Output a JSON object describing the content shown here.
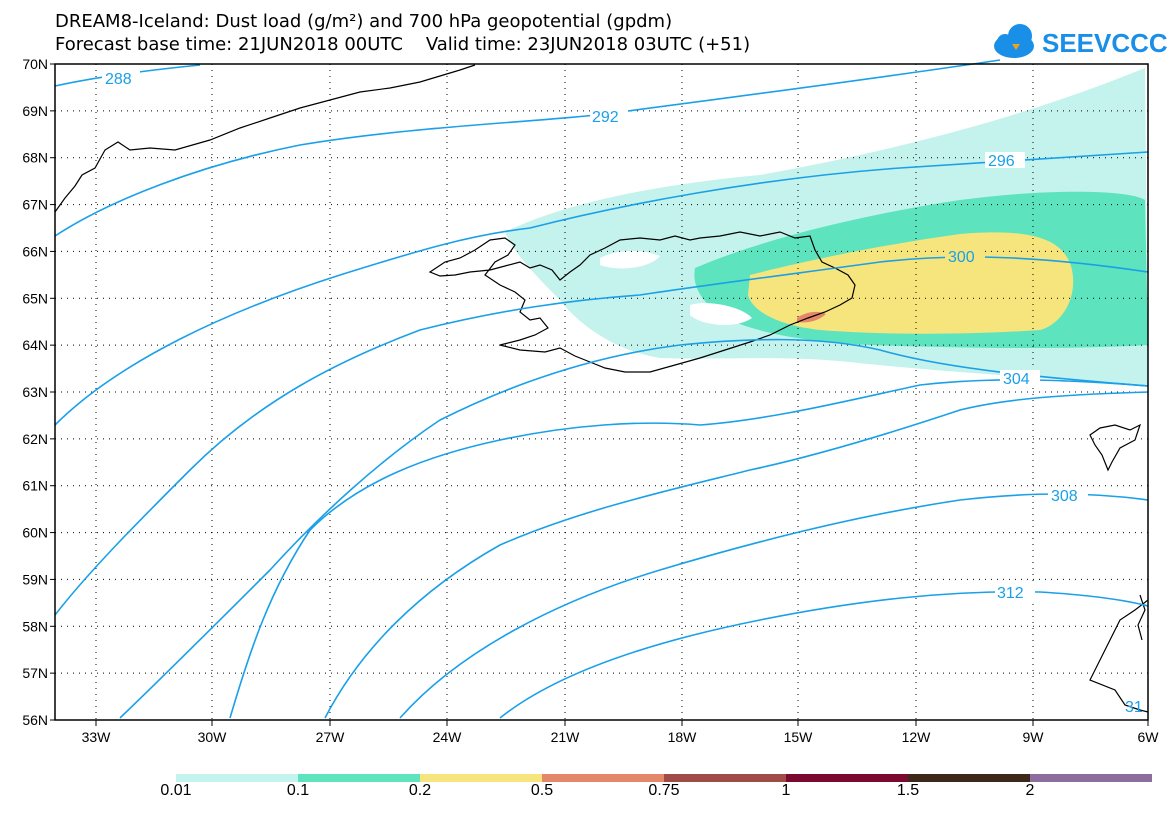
{
  "title": {
    "line1": "DREAM8-Iceland: Dust load (g/m²) and 700 hPa geopotential (gpdm)",
    "line2": "Forecast base time: 21JUN2018 00UTC    Valid time: 23JUN2018 03UTC (+51)"
  },
  "logo": {
    "text": "SEEVCCC",
    "icon": "cloud-icon",
    "color": "#1a8fe8"
  },
  "axes": {
    "lat_labels": [
      "70N",
      "69N",
      "68N",
      "67N",
      "66N",
      "65N",
      "64N",
      "63N",
      "62N",
      "61N",
      "60N",
      "59N",
      "58N",
      "57N",
      "56N"
    ],
    "lon_labels": [
      "33W",
      "30W",
      "27W",
      "24W",
      "21W",
      "18W",
      "15W",
      "12W",
      "9W",
      "6W"
    ]
  },
  "contours": {
    "color": "#1aa0e8",
    "labels": [
      "288",
      "292",
      "296",
      "300",
      "304",
      "308",
      "312",
      "31"
    ]
  },
  "dust_colors": {
    "c001": "#c4f2ec",
    "c01": "#5ee3bf",
    "c02": "#f6e57c",
    "c05": "#e5876a"
  },
  "colorbar": {
    "colors": [
      "#c4f2ec",
      "#5ee3bf",
      "#f6e57c",
      "#e5876a",
      "#a14b49",
      "#7c0a30",
      "#3f2719",
      "#8f6c9e"
    ],
    "labels": [
      "0.01",
      "0.1",
      "0.2",
      "0.5",
      "0.75",
      "1",
      "1.5",
      "2"
    ]
  }
}
